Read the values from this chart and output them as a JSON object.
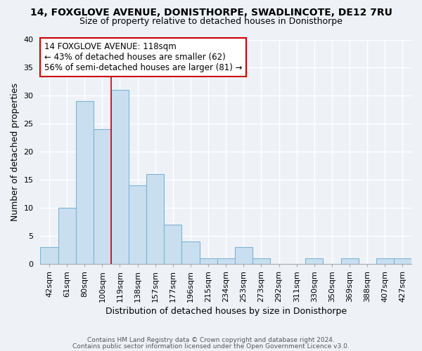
{
  "title": "14, FOXGLOVE AVENUE, DONISTHORPE, SWADLINCOTE, DE12 7RU",
  "subtitle": "Size of property relative to detached houses in Donisthorpe",
  "xlabel": "Distribution of detached houses by size in Donisthorpe",
  "ylabel": "Number of detached properties",
  "bar_labels": [
    "42sqm",
    "61sqm",
    "80sqm",
    "100sqm",
    "119sqm",
    "138sqm",
    "157sqm",
    "177sqm",
    "196sqm",
    "215sqm",
    "234sqm",
    "253sqm",
    "273sqm",
    "292sqm",
    "311sqm",
    "330sqm",
    "350sqm",
    "369sqm",
    "388sqm",
    "407sqm",
    "427sqm"
  ],
  "bar_heights": [
    3,
    10,
    29,
    24,
    31,
    14,
    16,
    7,
    4,
    1,
    1,
    3,
    1,
    0,
    0,
    1,
    0,
    1,
    0,
    1,
    1
  ],
  "bar_color": "#c9dff0",
  "bar_edge_color": "#7fb3d3",
  "vline_index": 4,
  "property_line_label": "14 FOXGLOVE AVENUE: 118sqm",
  "annotation_line1": "← 43% of detached houses are smaller (62)",
  "annotation_line2": "56% of semi-detached houses are larger (81) →",
  "ylim": [
    0,
    40
  ],
  "yticks": [
    0,
    5,
    10,
    15,
    20,
    25,
    30,
    35,
    40
  ],
  "footer1": "Contains HM Land Registry data © Crown copyright and database right 2024.",
  "footer2": "Contains public sector information licensed under the Open Government Licence v3.0.",
  "background_color": "#eef2f7",
  "plot_bg_color": "#eef2f7",
  "annotation_box_color": "#ffffff",
  "annotation_box_edge": "#cc0000",
  "vline_color": "#cc0000",
  "grid_color": "#ffffff",
  "title_fontsize": 10,
  "subtitle_fontsize": 9,
  "ylabel_fontsize": 9,
  "xlabel_fontsize": 9,
  "tick_fontsize": 8,
  "annot_fontsize": 8.5,
  "footer_fontsize": 6.5
}
